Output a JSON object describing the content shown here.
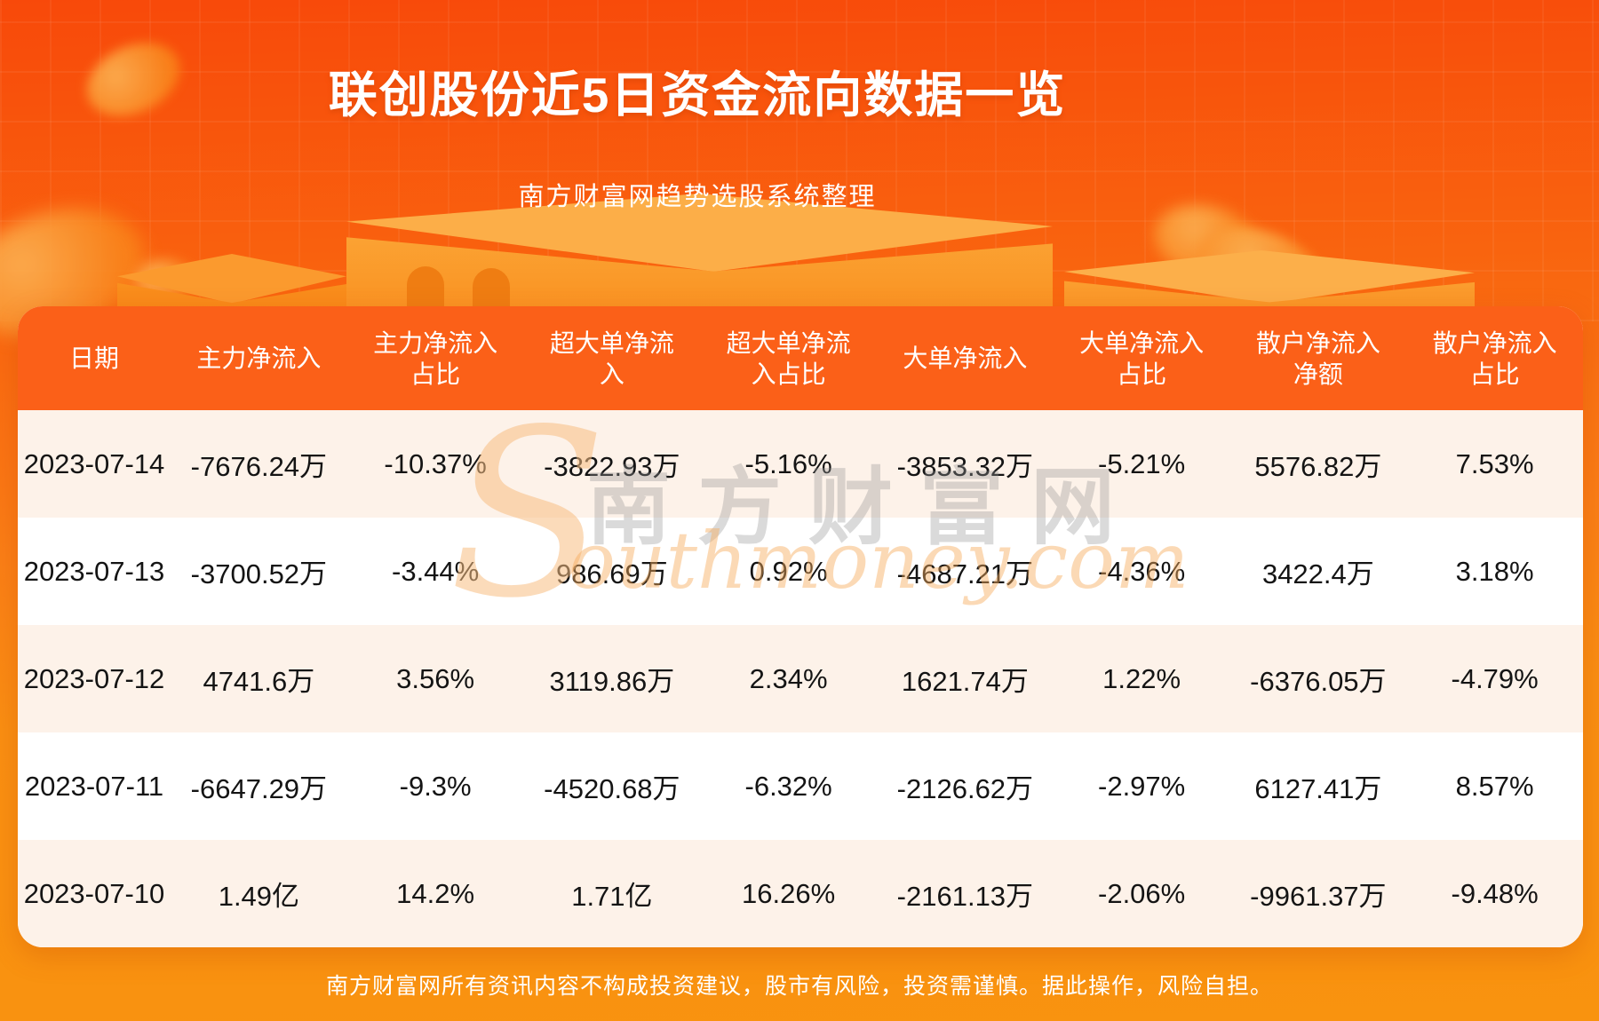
{
  "page": {
    "footer_disclaimer": "南方财富网所有资讯内容不构成投资建议，股市有风险，投资需谨慎。据此操作，风险自担。"
  },
  "watermark": {
    "s": "S",
    "cn": "南方财富网",
    "en": "outhmoney.com"
  },
  "colors": {
    "page_top": "#f8490a",
    "page_bottom": "#f9930f",
    "table_header_bg": "#fb6018",
    "row_alt_bg": "#fdf2e9",
    "row_white_bg": "#ffffff",
    "text_dark": "#141414",
    "text_light": "#ffffff",
    "podium_orange": "#fba637",
    "watermark_orange": "#f7aa5c"
  },
  "chart_data": {
    "type": "table",
    "title": "联创股份近5日资金流向数据一览",
    "subtitle": "南方财富网趋势选股系统整理",
    "columns": [
      "日期",
      "主力净流入",
      "主力净流入占比",
      "超大单净流入",
      "超大单净流入占比",
      "大单净流入",
      "大单净流入占比",
      "散户净流入净额",
      "散户净流入占比"
    ],
    "columns_display": [
      "日期",
      "主力净流入",
      "主力净流入\n占比",
      "超大单净流\n入",
      "超大单净流\n入占比",
      "大单净流入",
      "大单净流入\n占比",
      "散户净流入\n净额",
      "散户净流入\n占比"
    ],
    "rows": [
      [
        "2023-07-14",
        "-7676.24万",
        "-10.37%",
        "-3822.93万",
        "-5.16%",
        "-3853.32万",
        "-5.21%",
        "5576.82万",
        "7.53%"
      ],
      [
        "2023-07-13",
        "-3700.52万",
        "-3.44%",
        "986.69万",
        "0.92%",
        "-4687.21万",
        "-4.36%",
        "3422.4万",
        "3.18%"
      ],
      [
        "2023-07-12",
        "4741.6万",
        "3.56%",
        "3119.86万",
        "2.34%",
        "1621.74万",
        "1.22%",
        "-6376.05万",
        "-4.79%"
      ],
      [
        "2023-07-11",
        "-6647.29万",
        "-9.3%",
        "-4520.68万",
        "-6.32%",
        "-2126.62万",
        "-2.97%",
        "6127.41万",
        "8.57%"
      ],
      [
        "2023-07-10",
        "1.49亿",
        "14.2%",
        "1.71亿",
        "16.26%",
        "-2161.13万",
        "-2.06%",
        "-9961.37万",
        "-9.48%"
      ]
    ]
  }
}
